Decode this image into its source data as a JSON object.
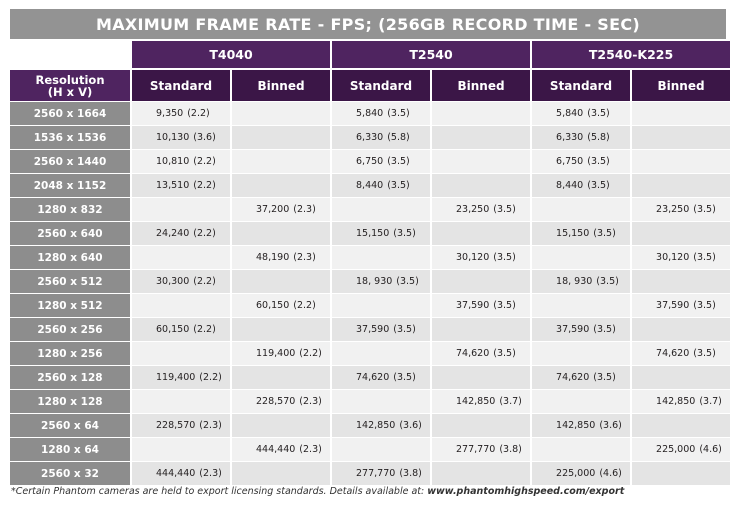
{
  "title": "MAXIMUM FRAME RATE - FPS; (256GB RECORD TIME - SEC)",
  "resolution_header": {
    "line1": "Resolution",
    "line2": "(H x V)"
  },
  "cameras": [
    "T4040",
    "T2540",
    "T2540-K225"
  ],
  "modes": [
    "Standard",
    "Binned"
  ],
  "rows": [
    {
      "res": "2560 x 1664",
      "cells": [
        [
          "9,350",
          "(2.2)"
        ],
        [
          "",
          ""
        ],
        [
          "5,840",
          "(3.5)"
        ],
        [
          "",
          ""
        ],
        [
          "5,840",
          "(3.5)"
        ],
        [
          "",
          ""
        ]
      ]
    },
    {
      "res": "1536 x 1536",
      "cells": [
        [
          "10,130",
          "(3.6)"
        ],
        [
          "",
          ""
        ],
        [
          "6,330",
          "(5.8)"
        ],
        [
          "",
          ""
        ],
        [
          "6,330",
          "(5.8)"
        ],
        [
          "",
          ""
        ]
      ]
    },
    {
      "res": "2560 x 1440",
      "cells": [
        [
          "10,810",
          "(2.2)"
        ],
        [
          "",
          ""
        ],
        [
          "6,750",
          "(3.5)"
        ],
        [
          "",
          ""
        ],
        [
          "6,750",
          "(3.5)"
        ],
        [
          "",
          ""
        ]
      ]
    },
    {
      "res": "2048 x 1152",
      "cells": [
        [
          "13,510",
          "(2.2)"
        ],
        [
          "",
          ""
        ],
        [
          "8,440",
          "(3.5)"
        ],
        [
          "",
          ""
        ],
        [
          "8,440",
          "(3.5)"
        ],
        [
          "",
          ""
        ]
      ]
    },
    {
      "res": "1280 x 832",
      "cells": [
        [
          "",
          ""
        ],
        [
          "37,200",
          "(2.3)"
        ],
        [
          "",
          ""
        ],
        [
          "23,250",
          "(3.5)"
        ],
        [
          "",
          ""
        ],
        [
          "23,250",
          "(3.5)"
        ]
      ]
    },
    {
      "res": "2560 x 640",
      "cells": [
        [
          "24,240",
          "(2.2)"
        ],
        [
          "",
          ""
        ],
        [
          "15,150",
          "(3.5)"
        ],
        [
          "",
          ""
        ],
        [
          "15,150",
          "(3.5)"
        ],
        [
          "",
          ""
        ]
      ]
    },
    {
      "res": "1280 x 640",
      "cells": [
        [
          "",
          ""
        ],
        [
          "48,190",
          "(2.3)"
        ],
        [
          "",
          ""
        ],
        [
          "30,120",
          "(3.5)"
        ],
        [
          "",
          ""
        ],
        [
          "30,120",
          "(3.5)"
        ]
      ]
    },
    {
      "res": "2560 x 512",
      "cells": [
        [
          "30,300",
          "(2.2)"
        ],
        [
          "",
          ""
        ],
        [
          "18, 930",
          "(3.5)"
        ],
        [
          "",
          ""
        ],
        [
          "18, 930",
          "(3.5)"
        ],
        [
          "",
          ""
        ]
      ]
    },
    {
      "res": "1280 x 512",
      "cells": [
        [
          "",
          ""
        ],
        [
          "60,150",
          "(2.2)"
        ],
        [
          "",
          ""
        ],
        [
          "37,590",
          "(3.5)"
        ],
        [
          "",
          ""
        ],
        [
          "37,590",
          "(3.5)"
        ]
      ]
    },
    {
      "res": "2560 x 256",
      "cells": [
        [
          "60,150",
          "(2.2)"
        ],
        [
          "",
          ""
        ],
        [
          "37,590",
          "(3.5)"
        ],
        [
          "",
          ""
        ],
        [
          "37,590",
          "(3.5)"
        ],
        [
          "",
          ""
        ]
      ]
    },
    {
      "res": "1280 x 256",
      "cells": [
        [
          "",
          ""
        ],
        [
          "119,400",
          "(2.2)"
        ],
        [
          "",
          ""
        ],
        [
          "74,620",
          "(3.5)"
        ],
        [
          "",
          ""
        ],
        [
          "74,620",
          "(3.5)"
        ]
      ]
    },
    {
      "res": "2560 x 128",
      "cells": [
        [
          "119,400",
          "(2.2)"
        ],
        [
          "",
          ""
        ],
        [
          "74,620",
          "(3.5)"
        ],
        [
          "",
          ""
        ],
        [
          "74,620",
          "(3.5)"
        ],
        [
          "",
          ""
        ]
      ]
    },
    {
      "res": "1280 x 128",
      "cells": [
        [
          "",
          ""
        ],
        [
          "228,570",
          "(2.3)"
        ],
        [
          "",
          ""
        ],
        [
          "142,850",
          "(3.7)"
        ],
        [
          "",
          ""
        ],
        [
          "142,850",
          "(3.7)"
        ]
      ]
    },
    {
      "res": "2560 x 64",
      "cells": [
        [
          "228,570",
          "(2.3)"
        ],
        [
          "",
          ""
        ],
        [
          "142,850",
          "(3.6)"
        ],
        [
          "",
          ""
        ],
        [
          "142,850",
          "(3.6)"
        ],
        [
          "",
          ""
        ]
      ]
    },
    {
      "res": "1280 x 64",
      "cells": [
        [
          "",
          ""
        ],
        [
          "444,440",
          "(2.3)"
        ],
        [
          "",
          ""
        ],
        [
          "277,770",
          "(3.8)"
        ],
        [
          "",
          ""
        ],
        [
          "225,000",
          "(4.6)"
        ]
      ]
    },
    {
      "res": "2560 x 32",
      "cells": [
        [
          "444,440",
          "(2.3)"
        ],
        [
          "",
          ""
        ],
        [
          "277,770",
          "(3.8)"
        ],
        [
          "",
          ""
        ],
        [
          "225,000",
          "(4.6)"
        ],
        [
          "",
          ""
        ]
      ]
    }
  ],
  "footnote": {
    "text": "*Certain Phantom cameras are held to export licensing standards. Details available at: ",
    "link": "www.phantomhighspeed.com/export"
  }
}
